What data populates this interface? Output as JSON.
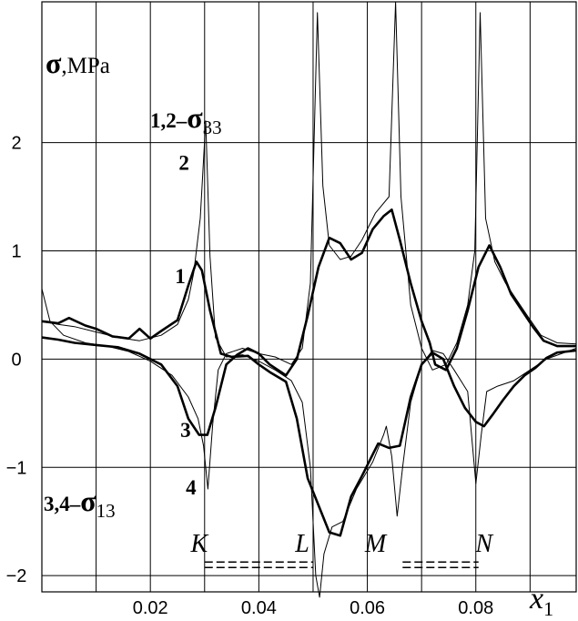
{
  "chart_data": {
    "type": "line",
    "title": "",
    "xlabel_main": "x",
    "xlabel_sub": "1",
    "ylabel_sigma": "σ",
    "ylabel_unit": ",MPa",
    "xlim": [
      0.0,
      0.0985
    ],
    "ylim": [
      -2.15,
      3.3
    ],
    "x_ticks": [
      {
        "v": 0.02,
        "label": "0.02"
      },
      {
        "v": 0.04,
        "label": "0.04"
      },
      {
        "v": 0.06,
        "label": "0.06"
      },
      {
        "v": 0.08,
        "label": "0.08"
      }
    ],
    "y_ticks": [
      {
        "v": 2,
        "label": "2"
      },
      {
        "v": 1,
        "label": "1"
      },
      {
        "v": 0,
        "label": "0"
      },
      {
        "v": -1,
        "label": "−1"
      },
      {
        "v": -2,
        "label": "−2"
      }
    ],
    "grid_x": [
      0.01,
      0.02,
      0.03,
      0.04,
      0.05,
      0.06,
      0.07,
      0.08,
      0.09
    ],
    "grid_y": [
      -2,
      -1,
      0,
      1,
      2
    ],
    "legend_top": {
      "prefix": "1,2–",
      "sigma": "σ",
      "sub": "33"
    },
    "legend_bottom": {
      "prefix": "3,4–",
      "sigma": "σ",
      "sub": "13"
    },
    "series": [
      {
        "name": "1",
        "values": [
          [
            0.0,
            0.35
          ],
          [
            0.003,
            0.33
          ],
          [
            0.005,
            0.38
          ],
          [
            0.008,
            0.31
          ],
          [
            0.01,
            0.28
          ],
          [
            0.013,
            0.21
          ],
          [
            0.016,
            0.19
          ],
          [
            0.018,
            0.28
          ],
          [
            0.02,
            0.19
          ],
          [
            0.022,
            0.26
          ],
          [
            0.025,
            0.36
          ],
          [
            0.027,
            0.68
          ],
          [
            0.0285,
            0.9
          ],
          [
            0.0295,
            0.82
          ],
          [
            0.031,
            0.45
          ],
          [
            0.033,
            0.05
          ],
          [
            0.035,
            0.02
          ],
          [
            0.038,
            0.03
          ],
          [
            0.04,
            -0.05
          ],
          [
            0.042,
            -0.12
          ],
          [
            0.045,
            -0.21
          ],
          [
            0.047,
            -0.55
          ],
          [
            0.049,
            -1.1
          ],
          [
            0.051,
            -1.35
          ],
          [
            0.053,
            -1.6
          ],
          [
            0.055,
            -1.63
          ],
          [
            0.057,
            -1.27
          ],
          [
            0.059,
            -1.08
          ],
          [
            0.062,
            -0.78
          ],
          [
            0.064,
            -0.82
          ],
          [
            0.066,
            -0.8
          ],
          [
            0.068,
            -0.35
          ],
          [
            0.07,
            -0.05
          ],
          [
            0.072,
            0.06
          ],
          [
            0.074,
            0.0
          ],
          [
            0.076,
            -0.25
          ],
          [
            0.078,
            -0.45
          ],
          [
            0.08,
            -0.58
          ],
          [
            0.0815,
            -0.62
          ],
          [
            0.083,
            -0.52
          ],
          [
            0.085,
            -0.38
          ],
          [
            0.087,
            -0.25
          ],
          [
            0.089,
            -0.15
          ],
          [
            0.091,
            -0.08
          ],
          [
            0.093,
            0.01
          ],
          [
            0.095,
            0.06
          ],
          [
            0.0985,
            0.08
          ]
        ]
      },
      {
        "name": "2",
        "values": [
          [
            0.0,
            0.35
          ],
          [
            0.003,
            0.32
          ],
          [
            0.006,
            0.3
          ],
          [
            0.01,
            0.25
          ],
          [
            0.014,
            0.2
          ],
          [
            0.018,
            0.17
          ],
          [
            0.022,
            0.22
          ],
          [
            0.025,
            0.32
          ],
          [
            0.027,
            0.55
          ],
          [
            0.028,
            0.8
          ],
          [
            0.0292,
            1.3
          ],
          [
            0.0302,
            2.2
          ],
          [
            0.031,
            0.95
          ],
          [
            0.032,
            0.2
          ],
          [
            0.034,
            0.02
          ],
          [
            0.037,
            0.04
          ],
          [
            0.04,
            -0.02
          ],
          [
            0.043,
            -0.1
          ],
          [
            0.046,
            -0.2
          ],
          [
            0.048,
            -0.4
          ],
          [
            0.0495,
            -1.0
          ],
          [
            0.0505,
            -2.0
          ],
          [
            0.0512,
            -2.2
          ],
          [
            0.052,
            -1.8
          ],
          [
            0.0535,
            -1.55
          ],
          [
            0.0555,
            -1.5
          ],
          [
            0.058,
            -1.2
          ],
          [
            0.061,
            -0.95
          ],
          [
            0.063,
            -0.7
          ],
          [
            0.0635,
            -0.62
          ],
          [
            0.0645,
            -0.9
          ],
          [
            0.0655,
            -1.45
          ],
          [
            0.0665,
            -1.0
          ],
          [
            0.068,
            -0.4
          ],
          [
            0.07,
            -0.05
          ],
          [
            0.072,
            0.08
          ],
          [
            0.074,
            0.05
          ],
          [
            0.076,
            -0.1
          ],
          [
            0.0785,
            -0.3
          ],
          [
            0.08,
            -1.15
          ],
          [
            0.081,
            -0.7
          ],
          [
            0.082,
            -0.3
          ],
          [
            0.084,
            -0.25
          ],
          [
            0.087,
            -0.2
          ],
          [
            0.09,
            -0.1
          ],
          [
            0.093,
            0.0
          ],
          [
            0.0985,
            0.1
          ]
        ]
      },
      {
        "name": "3",
        "values": [
          [
            0.0,
            0.2
          ],
          [
            0.003,
            0.18
          ],
          [
            0.006,
            0.15
          ],
          [
            0.01,
            0.13
          ],
          [
            0.014,
            0.11
          ],
          [
            0.018,
            0.05
          ],
          [
            0.022,
            -0.05
          ],
          [
            0.025,
            -0.25
          ],
          [
            0.027,
            -0.55
          ],
          [
            0.029,
            -0.7
          ],
          [
            0.0305,
            -0.7
          ],
          [
            0.032,
            -0.45
          ],
          [
            0.034,
            -0.05
          ],
          [
            0.036,
            0.04
          ],
          [
            0.038,
            0.1
          ],
          [
            0.04,
            0.05
          ],
          [
            0.042,
            -0.05
          ],
          [
            0.045,
            -0.15
          ],
          [
            0.047,
            0.0
          ],
          [
            0.049,
            0.4
          ],
          [
            0.051,
            0.85
          ],
          [
            0.053,
            1.12
          ],
          [
            0.055,
            1.07
          ],
          [
            0.057,
            0.92
          ],
          [
            0.059,
            0.98
          ],
          [
            0.061,
            1.2
          ],
          [
            0.063,
            1.32
          ],
          [
            0.0645,
            1.38
          ],
          [
            0.066,
            1.1
          ],
          [
            0.068,
            0.7
          ],
          [
            0.07,
            0.35
          ],
          [
            0.0715,
            0.15
          ],
          [
            0.0725,
            -0.05
          ],
          [
            0.0745,
            -0.1
          ],
          [
            0.0765,
            0.1
          ],
          [
            0.0785,
            0.45
          ],
          [
            0.0805,
            0.85
          ],
          [
            0.0825,
            1.05
          ],
          [
            0.0845,
            0.85
          ],
          [
            0.0865,
            0.6
          ],
          [
            0.0885,
            0.45
          ],
          [
            0.0905,
            0.3
          ],
          [
            0.0925,
            0.17
          ],
          [
            0.095,
            0.12
          ],
          [
            0.0985,
            0.12
          ]
        ]
      },
      {
        "name": "4",
        "values": [
          [
            0.0,
            0.65
          ],
          [
            0.0015,
            0.35
          ],
          [
            0.004,
            0.22
          ],
          [
            0.008,
            0.15
          ],
          [
            0.012,
            0.12
          ],
          [
            0.016,
            0.07
          ],
          [
            0.02,
            -0.02
          ],
          [
            0.024,
            -0.15
          ],
          [
            0.027,
            -0.35
          ],
          [
            0.0288,
            -0.55
          ],
          [
            0.0298,
            -0.8
          ],
          [
            0.0306,
            -1.2
          ],
          [
            0.0315,
            -0.6
          ],
          [
            0.0325,
            -0.1
          ],
          [
            0.034,
            0.05
          ],
          [
            0.037,
            0.1
          ],
          [
            0.04,
            0.05
          ],
          [
            0.043,
            0.02
          ],
          [
            0.046,
            -0.05
          ],
          [
            0.048,
            0.1
          ],
          [
            0.0495,
            0.7
          ],
          [
            0.0508,
            3.2
          ],
          [
            0.0518,
            1.6
          ],
          [
            0.053,
            1.05
          ],
          [
            0.055,
            0.92
          ],
          [
            0.057,
            0.95
          ],
          [
            0.059,
            1.1
          ],
          [
            0.0615,
            1.35
          ],
          [
            0.064,
            1.5
          ],
          [
            0.0652,
            3.3
          ],
          [
            0.0662,
            1.5
          ],
          [
            0.068,
            0.5
          ],
          [
            0.07,
            0.1
          ],
          [
            0.072,
            -0.1
          ],
          [
            0.0745,
            -0.05
          ],
          [
            0.0765,
            0.15
          ],
          [
            0.0785,
            0.5
          ],
          [
            0.0798,
            1.0
          ],
          [
            0.0808,
            3.2
          ],
          [
            0.0818,
            1.3
          ],
          [
            0.0835,
            0.9
          ],
          [
            0.0855,
            0.7
          ],
          [
            0.0875,
            0.55
          ],
          [
            0.0895,
            0.4
          ],
          [
            0.092,
            0.22
          ],
          [
            0.095,
            0.15
          ],
          [
            0.0985,
            0.14
          ]
        ]
      }
    ],
    "curve_labels": [
      {
        "text": "1",
        "x": 0.0255,
        "y": 0.7
      },
      {
        "text": "2",
        "x": 0.0262,
        "y": 1.75
      },
      {
        "text": "3",
        "x": 0.0265,
        "y": -0.72
      },
      {
        "text": "4",
        "x": 0.0275,
        "y": -1.25
      }
    ],
    "segment_labels": [
      {
        "text": "K",
        "x": 0.029,
        "y": -1.78
      },
      {
        "text": "L",
        "x": 0.048,
        "y": -1.78
      },
      {
        "text": "M",
        "x": 0.0615,
        "y": -1.78
      },
      {
        "text": "N",
        "x": 0.0815,
        "y": -1.78
      }
    ],
    "dashed_segments": [
      {
        "x1": 0.03,
        "x2": 0.05,
        "y": -1.9
      },
      {
        "x1": 0.0665,
        "x2": 0.0805,
        "y": -1.9
      }
    ]
  }
}
